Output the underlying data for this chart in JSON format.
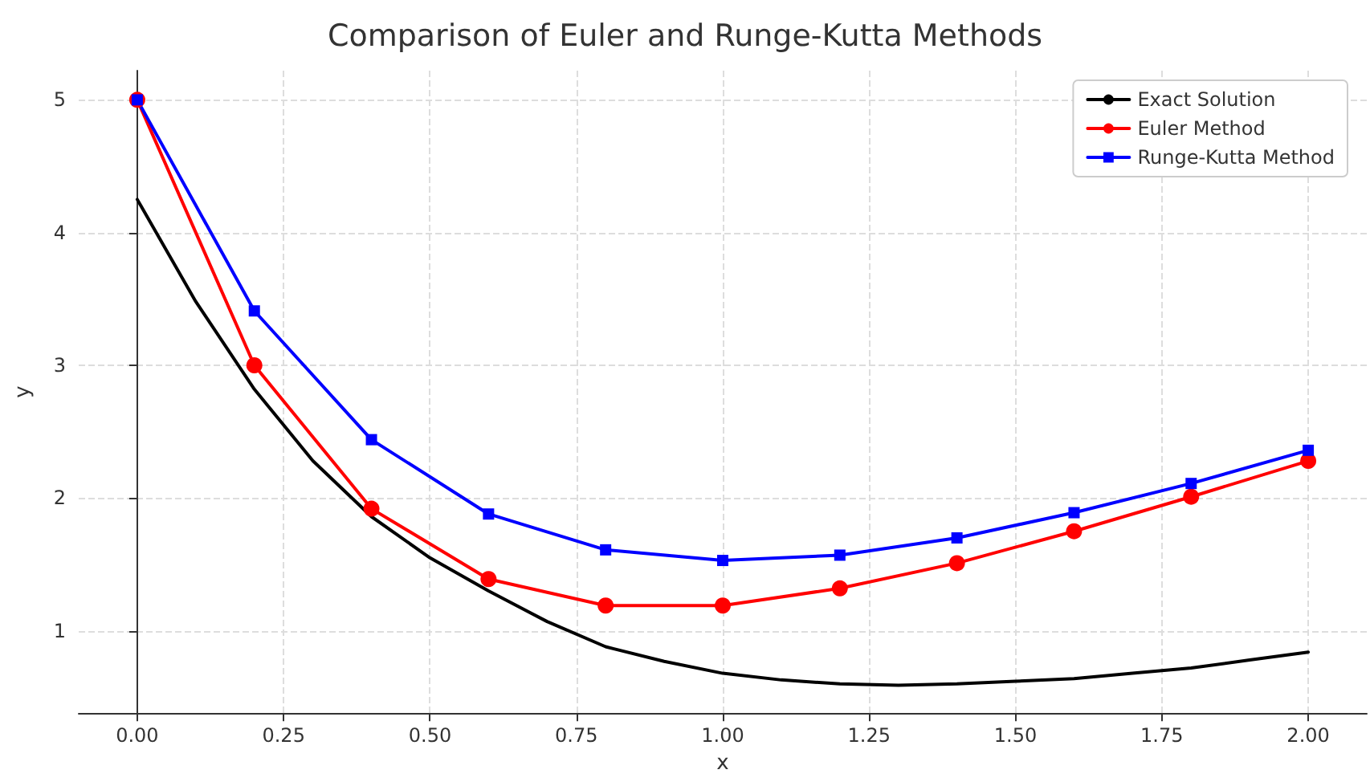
{
  "chart_data": {
    "type": "line",
    "title": "Comparison of Euler and Runge-Kutta Methods",
    "xlabel": "x",
    "ylabel": "y",
    "xlim": [
      -0.1,
      2.1
    ],
    "xticks": [
      {
        "value": 0,
        "label": "0.00"
      },
      {
        "value": 0.25,
        "label": "0.25"
      },
      {
        "value": 0.5,
        "label": "0.50"
      },
      {
        "value": 0.75,
        "label": "0.75"
      },
      {
        "value": 1,
        "label": "1.00"
      },
      {
        "value": 1.25,
        "label": "1.25"
      },
      {
        "value": 1.5,
        "label": "1.50"
      },
      {
        "value": 1.75,
        "label": "1.75"
      },
      {
        "value": 2,
        "label": "2.00"
      }
    ],
    "ylim": [
      0.38,
      5.22
    ],
    "yticks": [
      1,
      2,
      3,
      4,
      5
    ],
    "grid": true,
    "legend": "top right",
    "line_style": "solid",
    "series": [
      {
        "name": "Exact Solution",
        "color": "#000000",
        "marker": "none",
        "x": [
          0,
          0.1,
          0.2,
          0.3,
          0.4,
          0.5,
          0.6,
          0.7,
          0.8,
          0.9,
          1.0,
          1.1,
          1.2,
          1.3,
          1.4,
          1.5,
          1.6,
          1.7,
          1.8,
          1.9,
          2.0
        ],
        "values": [
          4.25,
          3.48,
          2.82,
          2.28,
          1.86,
          1.55,
          1.3,
          1.07,
          0.88,
          0.77,
          0.68,
          0.63,
          0.6,
          0.59,
          0.6,
          0.62,
          0.64,
          0.68,
          0.72,
          0.78,
          0.84
        ]
      },
      {
        "name": "Euler Method",
        "color": "#ff0000",
        "marker": "circle",
        "x": [
          0,
          0.2,
          0.4,
          0.6,
          0.8,
          1.0,
          1.2,
          1.4,
          1.6,
          1.8,
          2.0
        ],
        "values": [
          5,
          3.0,
          1.92,
          1.39,
          1.19,
          1.19,
          1.32,
          1.51,
          1.75,
          2.01,
          2.28
        ]
      },
      {
        "name": "Runge-Kutta Method",
        "color": "#0000ff",
        "marker": "square",
        "x": [
          0,
          0.2,
          0.4,
          0.6,
          0.8,
          1.0,
          1.2,
          1.4,
          1.6,
          1.8,
          2.0
        ],
        "values": [
          5,
          3.41,
          2.44,
          1.88,
          1.61,
          1.53,
          1.57,
          1.7,
          1.89,
          2.11,
          2.36
        ]
      }
    ]
  }
}
